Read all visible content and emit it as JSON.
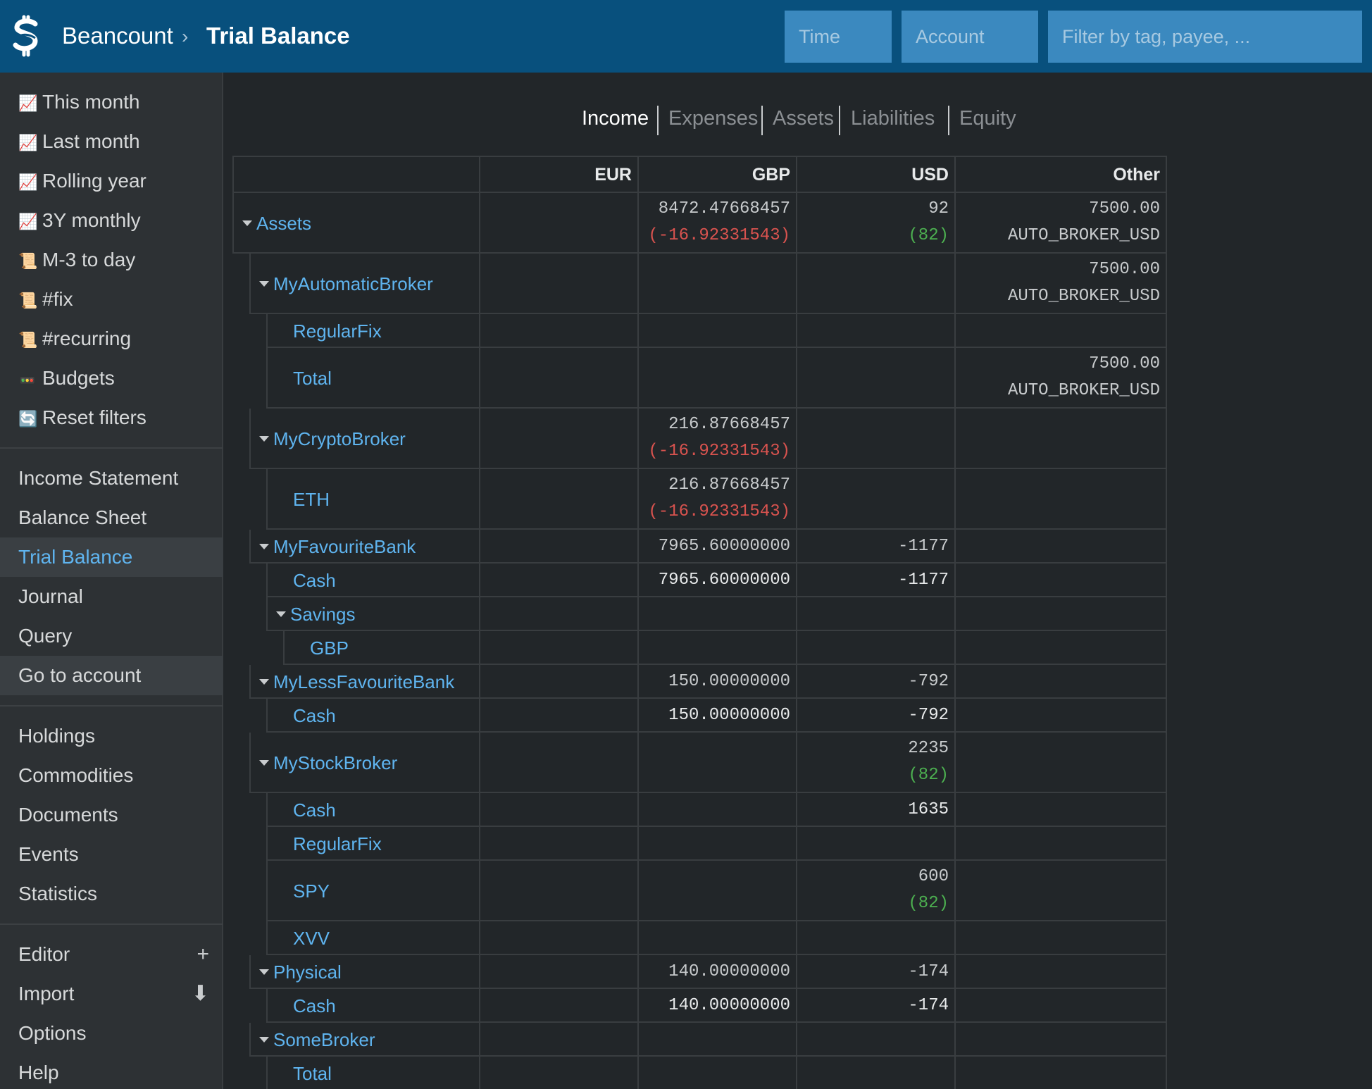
{
  "header": {
    "brand": "Beancount",
    "separator": "›",
    "title": "Trial Balance",
    "time_placeholder": "Time",
    "account_placeholder": "Account",
    "filter_placeholder": "Filter by tag, payee, ..."
  },
  "sidebar": {
    "quick_filters": [
      {
        "label": "This month",
        "icon": "chart-icon"
      },
      {
        "label": "Last month",
        "icon": "chart-icon"
      },
      {
        "label": "Rolling year",
        "icon": "chart-icon"
      },
      {
        "label": "3Y monthly",
        "icon": "chart-icon"
      },
      {
        "label": "M-3 to day",
        "icon": "scroll-icon"
      },
      {
        "label": "#fix",
        "icon": "scroll-icon"
      },
      {
        "label": "#recurring",
        "icon": "scroll-icon"
      },
      {
        "label": "Budgets",
        "icon": "budget-icon"
      },
      {
        "label": "Reset filters",
        "icon": "reset-icon"
      }
    ],
    "reports": [
      "Income Statement",
      "Balance Sheet",
      "Trial Balance",
      "Journal",
      "Query",
      "Go to account"
    ],
    "tools": [
      "Holdings",
      "Commodities",
      "Documents",
      "Events",
      "Statistics"
    ],
    "misc": [
      "Editor",
      "Import",
      "Options",
      "Help"
    ],
    "active": "Trial Balance",
    "editor_action": "+",
    "import_action": "⬇"
  },
  "tabs": [
    "Income",
    "Expenses",
    "Assets",
    "Liabilities",
    "Equity"
  ],
  "active_tab": "Income",
  "table": {
    "columns": [
      "EUR",
      "GBP",
      "USD",
      "Other"
    ],
    "rows": [
      {
        "account": "Assets",
        "depth": 0,
        "toggle": true,
        "gbp": [
          "8472.47668457",
          "(-16.92331543)"
        ],
        "usd": [
          "92",
          "(82)"
        ],
        "other": [
          "7500.00",
          "AUTO_BROKER_USD"
        ]
      },
      {
        "account": "MyAutomaticBroker",
        "depth": 1,
        "toggle": true,
        "other": [
          "7500.00",
          "AUTO_BROKER_USD"
        ]
      },
      {
        "account": "RegularFix",
        "depth": 2
      },
      {
        "account": "Total",
        "depth": 2,
        "other": [
          "7500.00",
          "AUTO_BROKER_USD"
        ]
      },
      {
        "account": "MyCryptoBroker",
        "depth": 1,
        "toggle": true,
        "gbp": [
          "216.87668457",
          "(-16.92331543)"
        ]
      },
      {
        "account": "ETH",
        "depth": 2,
        "gbp": [
          "216.87668457",
          "(-16.92331543)"
        ]
      },
      {
        "account": "MyFavouriteBank",
        "depth": 1,
        "toggle": true,
        "gbp": [
          "7965.60000000"
        ],
        "usd": [
          "-1177"
        ]
      },
      {
        "account": "Cash",
        "depth": 2,
        "gbp": [
          "7965.60000000"
        ],
        "usd": [
          "-1177"
        ]
      },
      {
        "account": "Savings",
        "depth": 2,
        "toggle": true
      },
      {
        "account": "GBP",
        "depth": 3
      },
      {
        "account": "MyLessFavouriteBank",
        "depth": 1,
        "toggle": true,
        "gbp": [
          "150.00000000"
        ],
        "usd": [
          "-792"
        ]
      },
      {
        "account": "Cash",
        "depth": 2,
        "gbp": [
          "150.00000000"
        ],
        "usd": [
          "-792"
        ]
      },
      {
        "account": "MyStockBroker",
        "depth": 1,
        "toggle": true,
        "usd": [
          "2235",
          "(82)"
        ]
      },
      {
        "account": "Cash",
        "depth": 2,
        "usd": [
          "1635"
        ]
      },
      {
        "account": "RegularFix",
        "depth": 2
      },
      {
        "account": "SPY",
        "depth": 2,
        "usd": [
          "600",
          "(82)"
        ]
      },
      {
        "account": "XVV",
        "depth": 2
      },
      {
        "account": "Physical",
        "depth": 1,
        "toggle": true,
        "gbp": [
          "140.00000000"
        ],
        "usd": [
          "-174"
        ]
      },
      {
        "account": "Cash",
        "depth": 2,
        "gbp": [
          "140.00000000"
        ],
        "usd": [
          "-174"
        ]
      },
      {
        "account": "SomeBroker",
        "depth": 1,
        "toggle": true
      },
      {
        "account": "Total",
        "depth": 2
      }
    ]
  }
}
